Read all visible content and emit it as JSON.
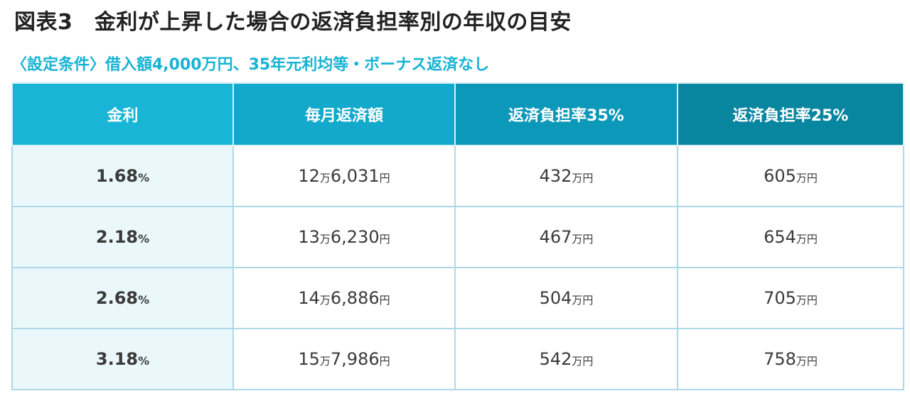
{
  "title": "図表3　金利が上昇した場合の返済負担率別の年収の目安",
  "subtitle": "〈設定条件〉借入額4,000万円、35年元利均等・ボーナス返済なし",
  "colors": {
    "accent_text": "#17b3d4",
    "header_1": "#19b5d6",
    "header_2": "#13a9cc",
    "header_3": "#0c98b8",
    "header_4": "#08859f",
    "rate_cell_bg": "#eaf8fc",
    "grid_line": "#aed8e8"
  },
  "table": {
    "headers": [
      "金利",
      "毎月返済額",
      "返済負担率35%",
      "返済負担率25%"
    ],
    "rows": [
      {
        "rate": "1.68",
        "rate_unit": "%",
        "monthly_main": "12",
        "monthly_man": "万",
        "monthly_rest": "6,031",
        "monthly_yen": "円",
        "r35": "432",
        "r35_unit": "万円",
        "r25": "605",
        "r25_unit": "万円"
      },
      {
        "rate": "2.18",
        "rate_unit": "%",
        "monthly_main": "13",
        "monthly_man": "万",
        "monthly_rest": "6,230",
        "monthly_yen": "円",
        "r35": "467",
        "r35_unit": "万円",
        "r25": "654",
        "r25_unit": "万円"
      },
      {
        "rate": "2.68",
        "rate_unit": "%",
        "monthly_main": "14",
        "monthly_man": "万",
        "monthly_rest": "6,886",
        "monthly_yen": "円",
        "r35": "504",
        "r35_unit": "万円",
        "r25": "705",
        "r25_unit": "万円"
      },
      {
        "rate": "3.18",
        "rate_unit": "%",
        "monthly_main": "15",
        "monthly_man": "万",
        "monthly_rest": "7,986",
        "monthly_yen": "円",
        "r35": "542",
        "r35_unit": "万円",
        "r25": "758",
        "r25_unit": "万円"
      }
    ]
  }
}
